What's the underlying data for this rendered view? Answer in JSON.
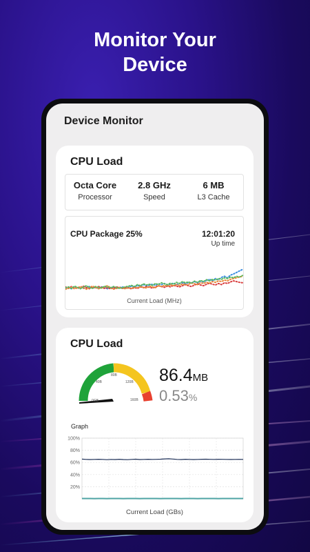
{
  "promo": {
    "headline_line1": "Monitor Your",
    "headline_line2": "Device"
  },
  "app": {
    "title": "Device Monitor"
  },
  "cpu_load_card": {
    "title": "CPU Load",
    "specs": [
      {
        "value": "Octa Core",
        "label": "Processor"
      },
      {
        "value": "2.8 GHz",
        "label": "Speed"
      },
      {
        "value": "6 MB",
        "label": "L3 Cache"
      }
    ],
    "package_label": "CPU Package 25%",
    "uptime_value": "12:01:20",
    "uptime_label": "Up time",
    "axis_label": "Current Load (MHz)"
  },
  "memory_card": {
    "title": "CPU Load",
    "gauge_ticks": [
      "0GB",
      "40B",
      "80B",
      "120B",
      "160B"
    ],
    "used_value": "86.4",
    "used_unit": "MB",
    "percent_value": "0.53",
    "percent_unit": "%",
    "graph_label": "Graph",
    "axis_label": "Current Load (GBs)"
  },
  "colors": {
    "gauge_green": "#1fa33a",
    "gauge_yellow": "#f4c51f",
    "gauge_red": "#e8412f",
    "series_blue": "#3b8fe0",
    "series_red": "#d94040",
    "series_orange": "#e8893a",
    "series_green": "#5cb85c"
  },
  "chart_data": [
    {
      "type": "line",
      "x": [
        1,
        2,
        3,
        4,
        5,
        6,
        7,
        8,
        9,
        10,
        11,
        12,
        13,
        14,
        15,
        16,
        17,
        18,
        19,
        20,
        21,
        22,
        23,
        24,
        25,
        26,
        27,
        28,
        29,
        30,
        31,
        32,
        33,
        34,
        35,
        36,
        37,
        38,
        39,
        40,
        41,
        42,
        43,
        44,
        45,
        46,
        47,
        48,
        49,
        50,
        51,
        52,
        53,
        54,
        55,
        56,
        57,
        58,
        59,
        60
      ],
      "series": [
        {
          "values": [
            20,
            22,
            19,
            23,
            21,
            24,
            20,
            22,
            25,
            21,
            23,
            20,
            24,
            22,
            19,
            21,
            23,
            20,
            22,
            24,
            21,
            23,
            26,
            24,
            28,
            26,
            30,
            27,
            29,
            31,
            28,
            32,
            30,
            33,
            29,
            31,
            34,
            30,
            33,
            35,
            32,
            36,
            34,
            38,
            35,
            39,
            37,
            41,
            44,
            40,
            46,
            43,
            49,
            52,
            48,
            55,
            58,
            62,
            66,
            70
          ],
          "color": "#3b8fe0"
        },
        {
          "values": [
            24,
            21,
            25,
            22,
            20,
            23,
            26,
            22,
            19,
            24,
            21,
            25,
            23,
            20,
            22,
            19,
            21,
            24,
            22,
            20,
            23,
            21,
            19,
            22,
            20,
            24,
            22,
            25,
            23,
            21,
            24,
            27,
            25,
            23,
            26,
            24,
            28,
            26,
            24,
            27,
            30,
            27,
            25,
            29,
            32,
            29,
            27,
            31,
            34,
            31,
            29,
            33,
            30,
            35,
            33,
            37,
            40,
            38,
            36,
            35
          ],
          "color": "#d94040"
        },
        {
          "values": [
            18,
            20,
            23,
            19,
            22,
            25,
            21,
            18,
            22,
            26,
            23,
            19,
            21,
            24,
            27,
            22,
            18,
            20,
            23,
            21,
            19,
            22,
            20,
            24,
            22,
            25,
            23,
            21,
            26,
            24,
            22,
            27,
            25,
            28,
            26,
            29,
            27,
            30,
            28,
            32,
            29,
            31,
            34,
            32,
            30,
            35,
            33,
            36,
            34,
            38,
            36,
            40,
            38,
            42,
            40,
            44,
            46,
            48,
            50,
            52
          ],
          "color": "#e8893a"
        },
        {
          "values": [
            22,
            24,
            20,
            26,
            23,
            19,
            24,
            27,
            22,
            20,
            25,
            23,
            21,
            26,
            24,
            22,
            25,
            23,
            20,
            22,
            24,
            26,
            28,
            25,
            30,
            27,
            32,
            29,
            31,
            28,
            33,
            30,
            35,
            32,
            30,
            34,
            31,
            36,
            33,
            38,
            35,
            37,
            34,
            39,
            36,
            41,
            38,
            43,
            40,
            44,
            42,
            46,
            44,
            48,
            46,
            50,
            48,
            52,
            50,
            54
          ],
          "color": "#5cb85c"
        }
      ],
      "ylim": [
        0,
        100
      ],
      "xlabel": "Current Load (MHz)"
    },
    {
      "type": "line",
      "x": [
        1,
        2,
        3,
        4,
        5,
        6,
        7,
        8,
        9,
        10,
        11,
        12,
        13,
        14,
        15,
        16,
        17,
        18,
        19,
        20,
        21,
        22,
        23,
        24,
        25,
        26,
        27,
        28,
        29,
        30,
        31,
        32,
        33,
        34,
        35,
        36,
        37,
        38,
        39,
        40
      ],
      "series": [
        {
          "values": [
            65.5,
            65,
            64.8,
            65,
            65.2,
            65,
            64.6,
            65,
            64.8,
            65.2,
            64.8,
            64.5,
            65,
            65.3,
            64.8,
            65,
            65.2,
            65,
            65.1,
            65.3,
            65.8,
            66,
            65.6,
            65,
            64.8,
            65.2,
            65,
            64.8,
            65,
            65.2,
            65.3,
            65.1,
            65,
            65.2,
            65.1,
            65,
            64.9,
            65,
            65.1,
            65
          ],
          "color": "#1d2f57"
        },
        {
          "values": [
            0.6,
            0.6,
            0.6,
            0.5,
            0.6,
            0.6,
            0.5,
            0.6,
            0.6,
            0.6,
            0.5,
            0.6,
            0.6,
            0.6,
            0.5,
            0.6,
            0.6,
            0.6,
            0.6,
            0.5,
            0.6,
            0.6,
            0.6,
            0.6,
            0.5,
            0.6,
            0.6,
            0.6,
            0.5,
            0.6,
            0.6,
            0.6,
            0.6,
            0.5,
            0.6,
            0.6,
            0.6,
            0.6,
            0.6,
            0.6
          ],
          "color": "#4da3a3"
        }
      ],
      "yticks": [
        "100%",
        "80%",
        "60%",
        "40%",
        "20%"
      ],
      "ylim": [
        0,
        100
      ],
      "xlabel": "Current Load (GBs)"
    }
  ]
}
